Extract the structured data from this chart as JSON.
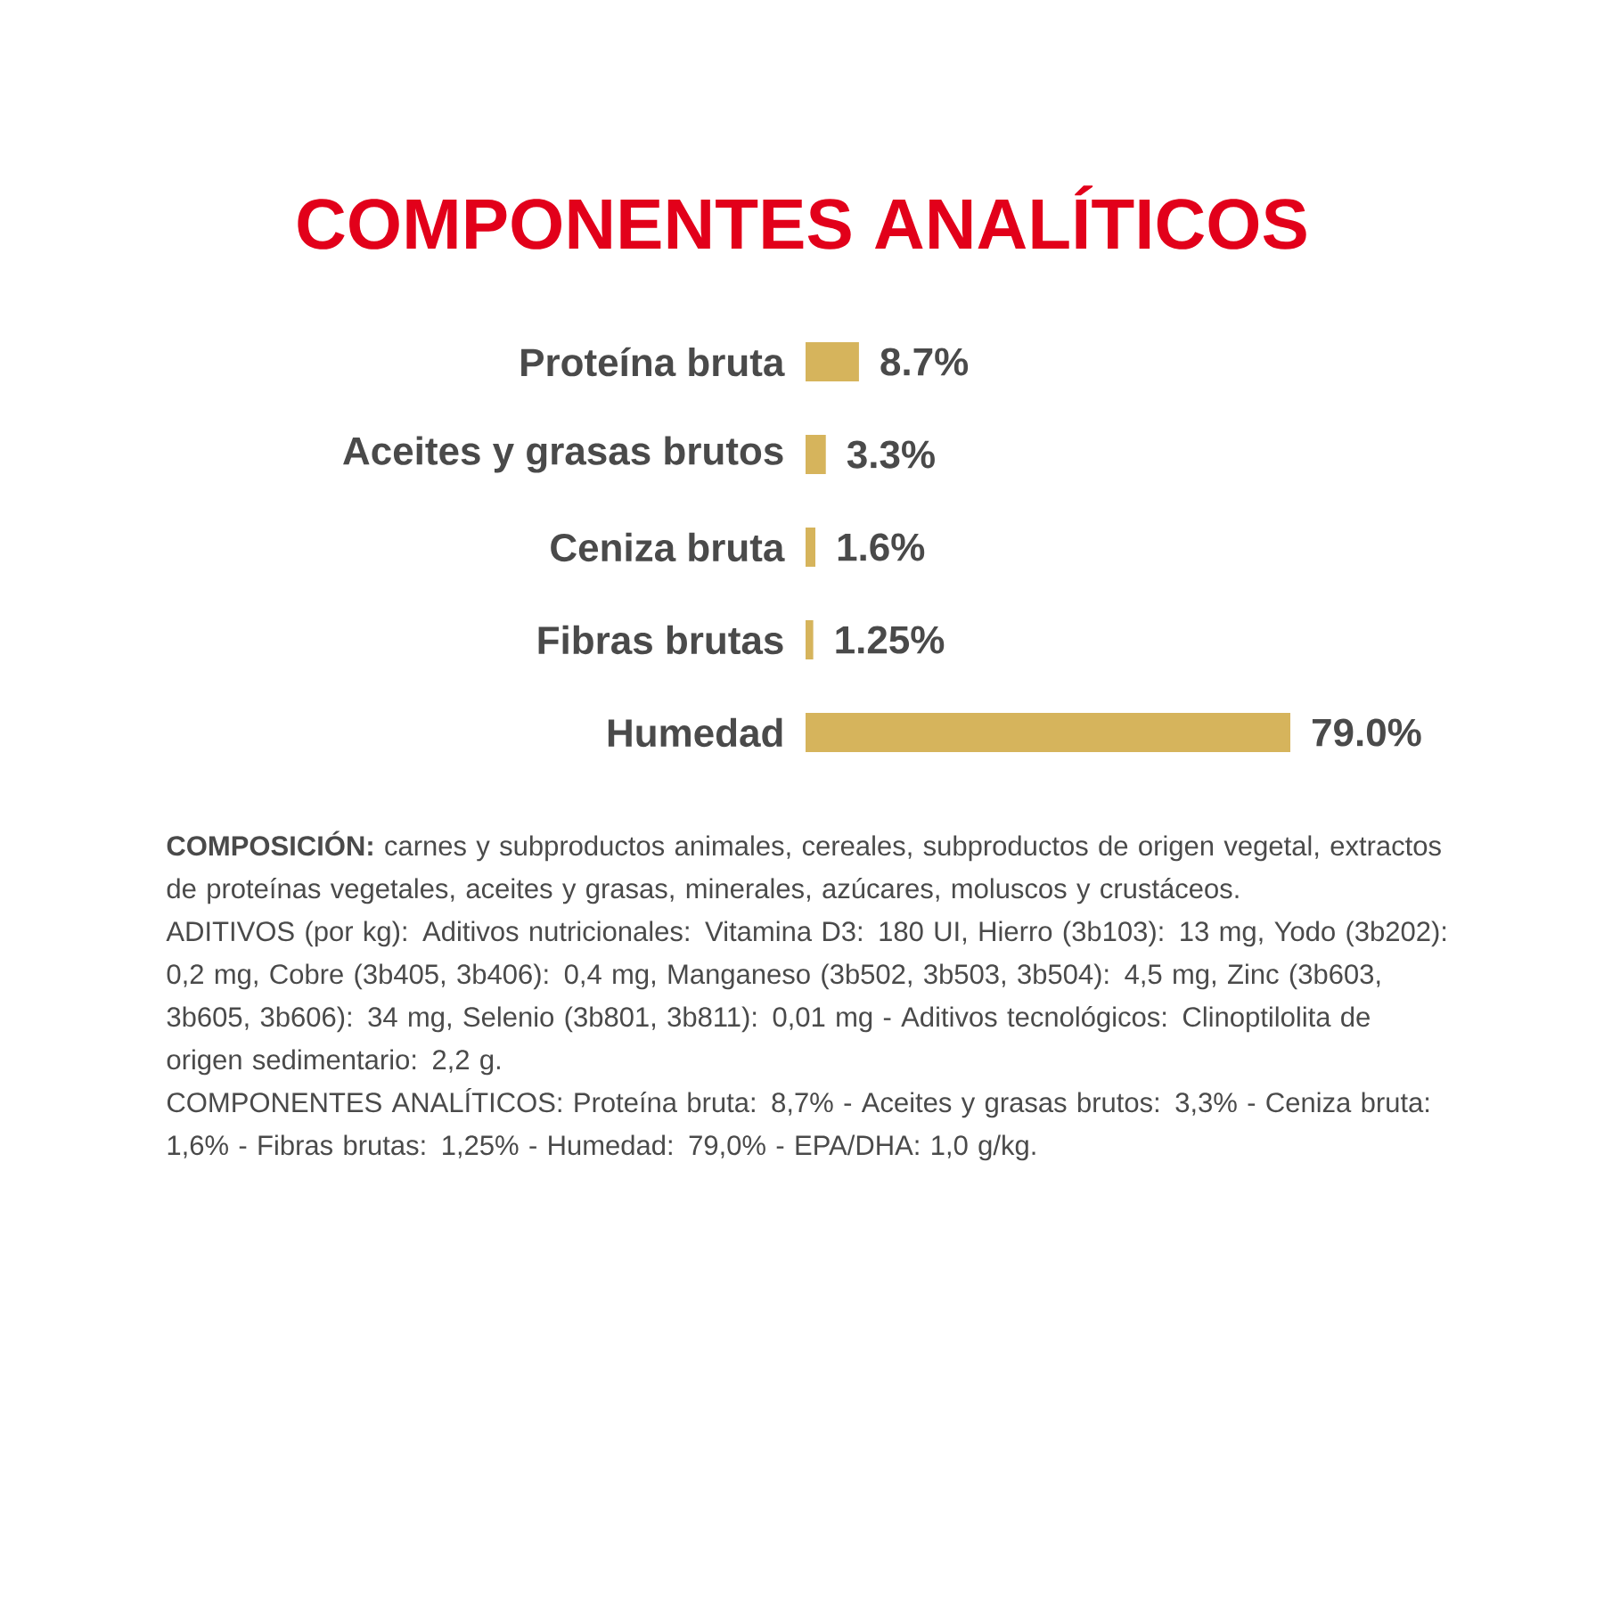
{
  "chart_data": {
    "type": "bar",
    "orientation": "horizontal",
    "title": "COMPONENTES ANALÍTICOS",
    "categories": [
      "Proteína bruta",
      "Aceites y grasas brutos",
      "Ceniza bruta",
      "Fibras brutas",
      "Humedad"
    ],
    "values": [
      8.7,
      3.3,
      1.6,
      1.25,
      79.0
    ],
    "value_labels": [
      "8.7%",
      "3.3%",
      "1.6%",
      "1.25%",
      "79.0%"
    ],
    "color": "#d6b45c",
    "annotations": [
      "**COMPOSICIÓN:** carnes y subproductos animales, cereales, subproductos de origen vegetal, extractos de proteínas vegetales, aceites y grasas, minerales, azúcares, moluscos y crustáceos.",
      "ADITIVOS (por kg): Aditivos nutricionales: Vitamina D3: 180 UI, Hierro (3b103): 13 mg, Yodo (3b202): 0,2 mg, Cobre (3b405, 3b406): 0,4 mg, Manganeso (3b502, 3b503, 3b504): 4,5 mg, Zinc (3b603, 3b605, 3b606): 34 mg, Selenio (3b801, 3b811): 0,01 mg - Aditivos tecnológicos: Clinoptilolita de origen sedimentario: 2,2 g.",
      "COMPONENTES ANALÍTICOS: Proteína bruta: 8,7% - Aceites y grasas brutos: 3,3% - Ceniza bruta: 1,6% - Fibras brutas: 1,25% - Humedad: 79,0% - EPA/DHA: 1,0 g/kg."
    ]
  }
}
